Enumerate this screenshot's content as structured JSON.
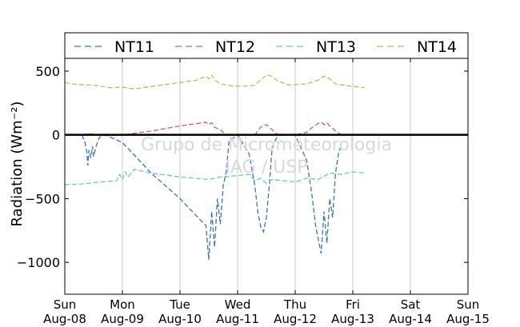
{
  "chart_data": {
    "type": "line",
    "title": "",
    "ylabel": "Radiation (Wm⁻²)",
    "xlabel": "",
    "xlim": [
      "2010-08-08",
      "2010-08-15"
    ],
    "ylim": [
      -1250,
      600
    ],
    "yticks": [
      500,
      0,
      -500,
      -1000
    ],
    "ytick_labels": [
      "500",
      "0",
      "−500",
      "−1000"
    ],
    "xtick_labels": [
      [
        "Sun",
        "Aug-08"
      ],
      [
        "Mon",
        "Aug-09"
      ],
      [
        "Tue",
        "Aug-10"
      ],
      [
        "Wed",
        "Aug-11"
      ],
      [
        "Thu",
        "Aug-12"
      ],
      [
        "Fri",
        "Aug-13"
      ],
      [
        "Sat",
        "Aug-14"
      ],
      [
        "Sun",
        "Aug-15"
      ]
    ],
    "grid": "vertical",
    "legend_position": "top",
    "watermark": [
      "Grupo de Micrometeorologia",
      "IAG / USP"
    ],
    "series": [
      {
        "name": "NT11",
        "color": "#3a75b0",
        "x": [
          0.3,
          0.35,
          0.38,
          0.4,
          0.42,
          0.45,
          0.48,
          0.5,
          0.55,
          0.6,
          0.7,
          1.0,
          1.5,
          2.0,
          2.4,
          2.45,
          2.5,
          2.55,
          2.6,
          2.65,
          2.7,
          2.75,
          2.8,
          2.85,
          3.0,
          3.2,
          3.3,
          3.35,
          3.4,
          3.45,
          3.5,
          3.55,
          3.6,
          3.7,
          4.0,
          4.2,
          4.3,
          4.35,
          4.4,
          4.45,
          4.5,
          4.55,
          4.6,
          4.65,
          4.7,
          4.75,
          4.8
        ],
        "y": [
          0,
          -60,
          -130,
          -240,
          -120,
          -180,
          -90,
          -170,
          -80,
          -20,
          0,
          -60,
          -300,
          -500,
          -690,
          -710,
          -980,
          -600,
          -880,
          -500,
          -700,
          -400,
          -300,
          -50,
          0,
          -150,
          -400,
          -600,
          -720,
          -760,
          -650,
          -400,
          -100,
          0,
          0,
          -200,
          -500,
          -700,
          -820,
          -930,
          -600,
          -850,
          -500,
          -650,
          -300,
          -150,
          -80
        ]
      },
      {
        "name": "NT12",
        "color": "#d0625c",
        "x": [
          0.3,
          0.4,
          0.5,
          0.6,
          0.7,
          1.0,
          1.5,
          2.0,
          2.4,
          2.45,
          2.5,
          2.55,
          2.6,
          2.7,
          2.8,
          3.0,
          3.3,
          3.4,
          3.5,
          3.6,
          3.7,
          4.0,
          4.2,
          4.3,
          4.4,
          4.45,
          4.5,
          4.55,
          4.6,
          4.7,
          4.8,
          5.0,
          5.2
        ],
        "y": [
          0,
          10,
          5,
          0,
          -5,
          0,
          30,
          70,
          95,
          100,
          80,
          95,
          60,
          40,
          0,
          0,
          0,
          60,
          80,
          40,
          0,
          0,
          20,
          60,
          90,
          100,
          80,
          95,
          70,
          30,
          0,
          0,
          0
        ]
      },
      {
        "name": "NT13",
        "color": "#66ccaa",
        "x": [
          0.0,
          0.3,
          0.6,
          0.9,
          0.95,
          1.0,
          1.05,
          1.1,
          1.2,
          1.3,
          1.5,
          2.0,
          2.5,
          2.7,
          3.0,
          3.2,
          3.3,
          3.4,
          3.5,
          3.6,
          3.8,
          4.0,
          4.2,
          4.4,
          4.6,
          4.8,
          5.0,
          5.2
        ],
        "y": [
          -390,
          -385,
          -370,
          -360,
          -310,
          -350,
          -290,
          -330,
          -270,
          -280,
          -300,
          -330,
          -350,
          -330,
          -320,
          -310,
          -360,
          -340,
          -380,
          -350,
          -360,
          -370,
          -340,
          -350,
          -300,
          -310,
          -290,
          -300
        ]
      },
      {
        "name": "NT14",
        "color": "#bcbc5c",
        "x": [
          0.0,
          0.2,
          0.5,
          0.8,
          1.0,
          1.2,
          1.5,
          2.0,
          2.3,
          2.45,
          2.5,
          2.55,
          2.6,
          2.7,
          2.9,
          3.1,
          3.3,
          3.4,
          3.5,
          3.6,
          3.7,
          3.9,
          4.2,
          4.4,
          4.5,
          4.6,
          4.7,
          5.0,
          5.2
        ],
        "y": [
          410,
          395,
          390,
          370,
          375,
          360,
          380,
          410,
          430,
          460,
          440,
          470,
          430,
          400,
          385,
          380,
          390,
          430,
          470,
          460,
          420,
          390,
          400,
          430,
          460,
          440,
          400,
          380,
          370
        ]
      }
    ]
  }
}
